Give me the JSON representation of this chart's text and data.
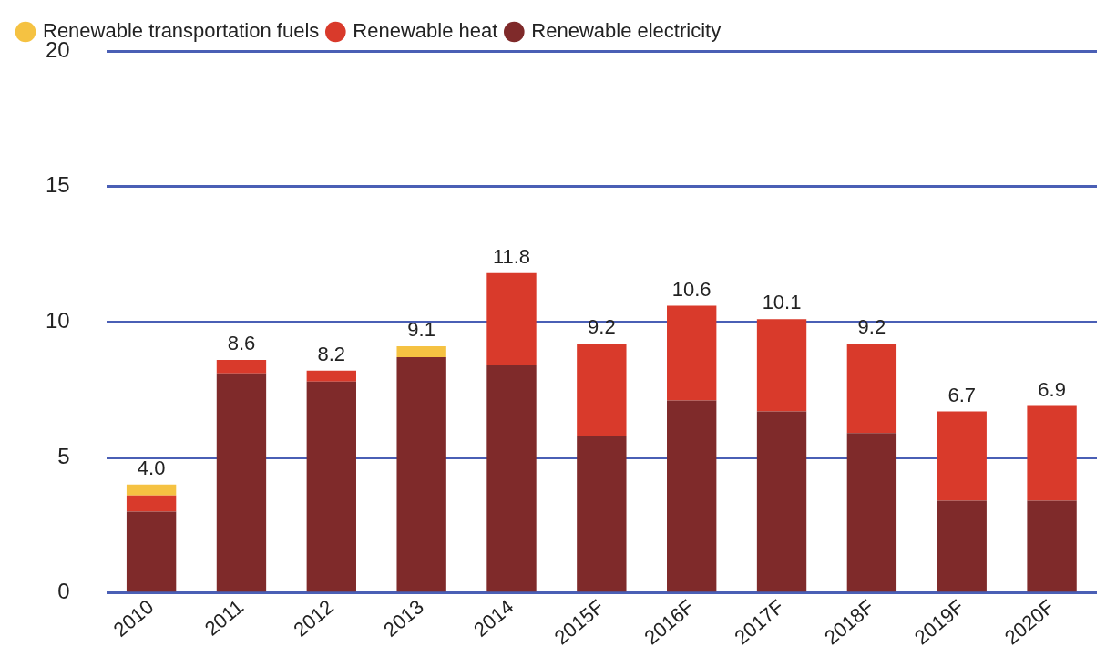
{
  "chart_data": {
    "type": "bar",
    "stacked": true,
    "categories": [
      "2010",
      "2011",
      "2012",
      "2013",
      "2014",
      "2015F",
      "2016F",
      "2017F",
      "2018F",
      "2019F",
      "2020F"
    ],
    "series": [
      {
        "name": "Renewable electricity",
        "color": "#7f2a2a",
        "values": [
          3.0,
          8.1,
          7.8,
          8.7,
          8.4,
          5.8,
          7.1,
          6.7,
          5.9,
          3.4,
          3.4
        ]
      },
      {
        "name": "Renewable heat",
        "color": "#d93a2b",
        "values": [
          0.6,
          0.5,
          0.4,
          0,
          3.4,
          3.4,
          3.5,
          3.4,
          3.3,
          3.3,
          3.5
        ]
      },
      {
        "name": "Renewable transportation fuels",
        "color": "#f5c242",
        "values": [
          0.4,
          0,
          0,
          0.4,
          0,
          0,
          0,
          0,
          0,
          0,
          0
        ]
      }
    ],
    "totals": [
      "4.0",
      "8.6",
      "8.2",
      "9.1",
      "11.8",
      "9.2",
      "10.6",
      "10.1",
      "9.2",
      "6.7",
      "6.9"
    ],
    "ylim": [
      0,
      20
    ],
    "yticks": [
      0,
      5,
      10,
      15,
      20
    ],
    "grid": "y",
    "legend": "top left"
  }
}
